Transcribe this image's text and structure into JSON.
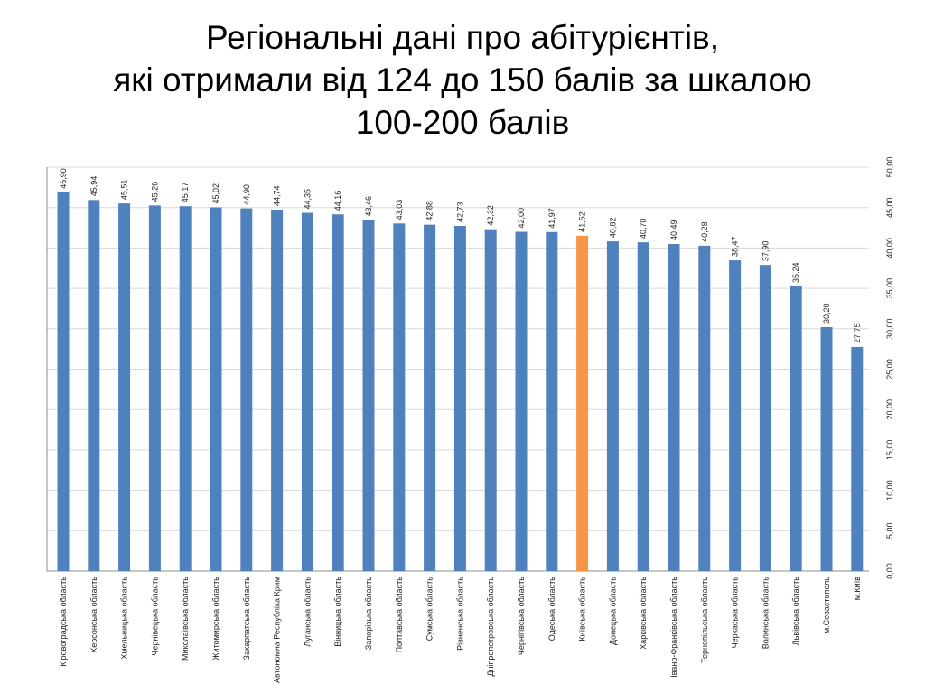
{
  "title_lines": [
    "Регіональні дані про абітурієнтів,",
    "які отримали від 124 до 150 балів за шкалою",
    "100-200 балів"
  ],
  "colors": {
    "bar": "#4f81bd",
    "highlight": "#f79646",
    "grid": "#d9d9d9",
    "axis": "#8c8c8c",
    "text": "#1f1f1f"
  },
  "chart_data": {
    "type": "bar",
    "orientation": "vertical",
    "y_axis_position": "right",
    "grid": true,
    "legend": "none",
    "ylim": [
      0,
      50
    ],
    "y_ticks": [
      "0,00",
      "5,00",
      "10,00",
      "15,00",
      "20,00",
      "25,00",
      "30,00",
      "35,00",
      "40,00",
      "45,00",
      "50,00"
    ],
    "categories": [
      "Кіровоградська область",
      "Херсонська область",
      "Хмельницька область",
      "Чернівецька область",
      "Миколаївська область",
      "Житомирська область",
      "Закарпатська область",
      "Автономна Республіка Крим",
      "Луганська область",
      "Вінницька область",
      "Запорізька область",
      "Полтавська область",
      "Сумська область",
      "Рівненська область",
      "Дніпропетровська область",
      "Чернігівська область",
      "Одеська область",
      "Київська область",
      "Донецька область",
      "Харківська область",
      "Івано-Франківська область",
      "Тернопільська область",
      "Черкаська область",
      "Волинська область",
      "Львівська область",
      "м.Севастополь",
      "м.Київ"
    ],
    "values": [
      46.9,
      45.94,
      45.51,
      45.26,
      45.17,
      45.02,
      44.9,
      44.74,
      44.35,
      44.16,
      43.46,
      43.03,
      42.88,
      42.73,
      42.32,
      42.0,
      41.97,
      41.52,
      40.82,
      40.7,
      40.49,
      40.28,
      38.47,
      37.9,
      35.24,
      30.2,
      27.75
    ],
    "value_labels": [
      "46,90",
      "45,94",
      "45,51",
      "45,26",
      "45,17",
      "45,02",
      "44,90",
      "44,74",
      "44,35",
      "44,16",
      "43,46",
      "43,03",
      "42,88",
      "42,73",
      "42,32",
      "42,00",
      "41,97",
      "41,52",
      "40,82",
      "40,70",
      "40,49",
      "40,28",
      "38,47",
      "37,90",
      "35,24",
      "30,20",
      "27,75"
    ],
    "highlighted_category": "Київська область"
  }
}
